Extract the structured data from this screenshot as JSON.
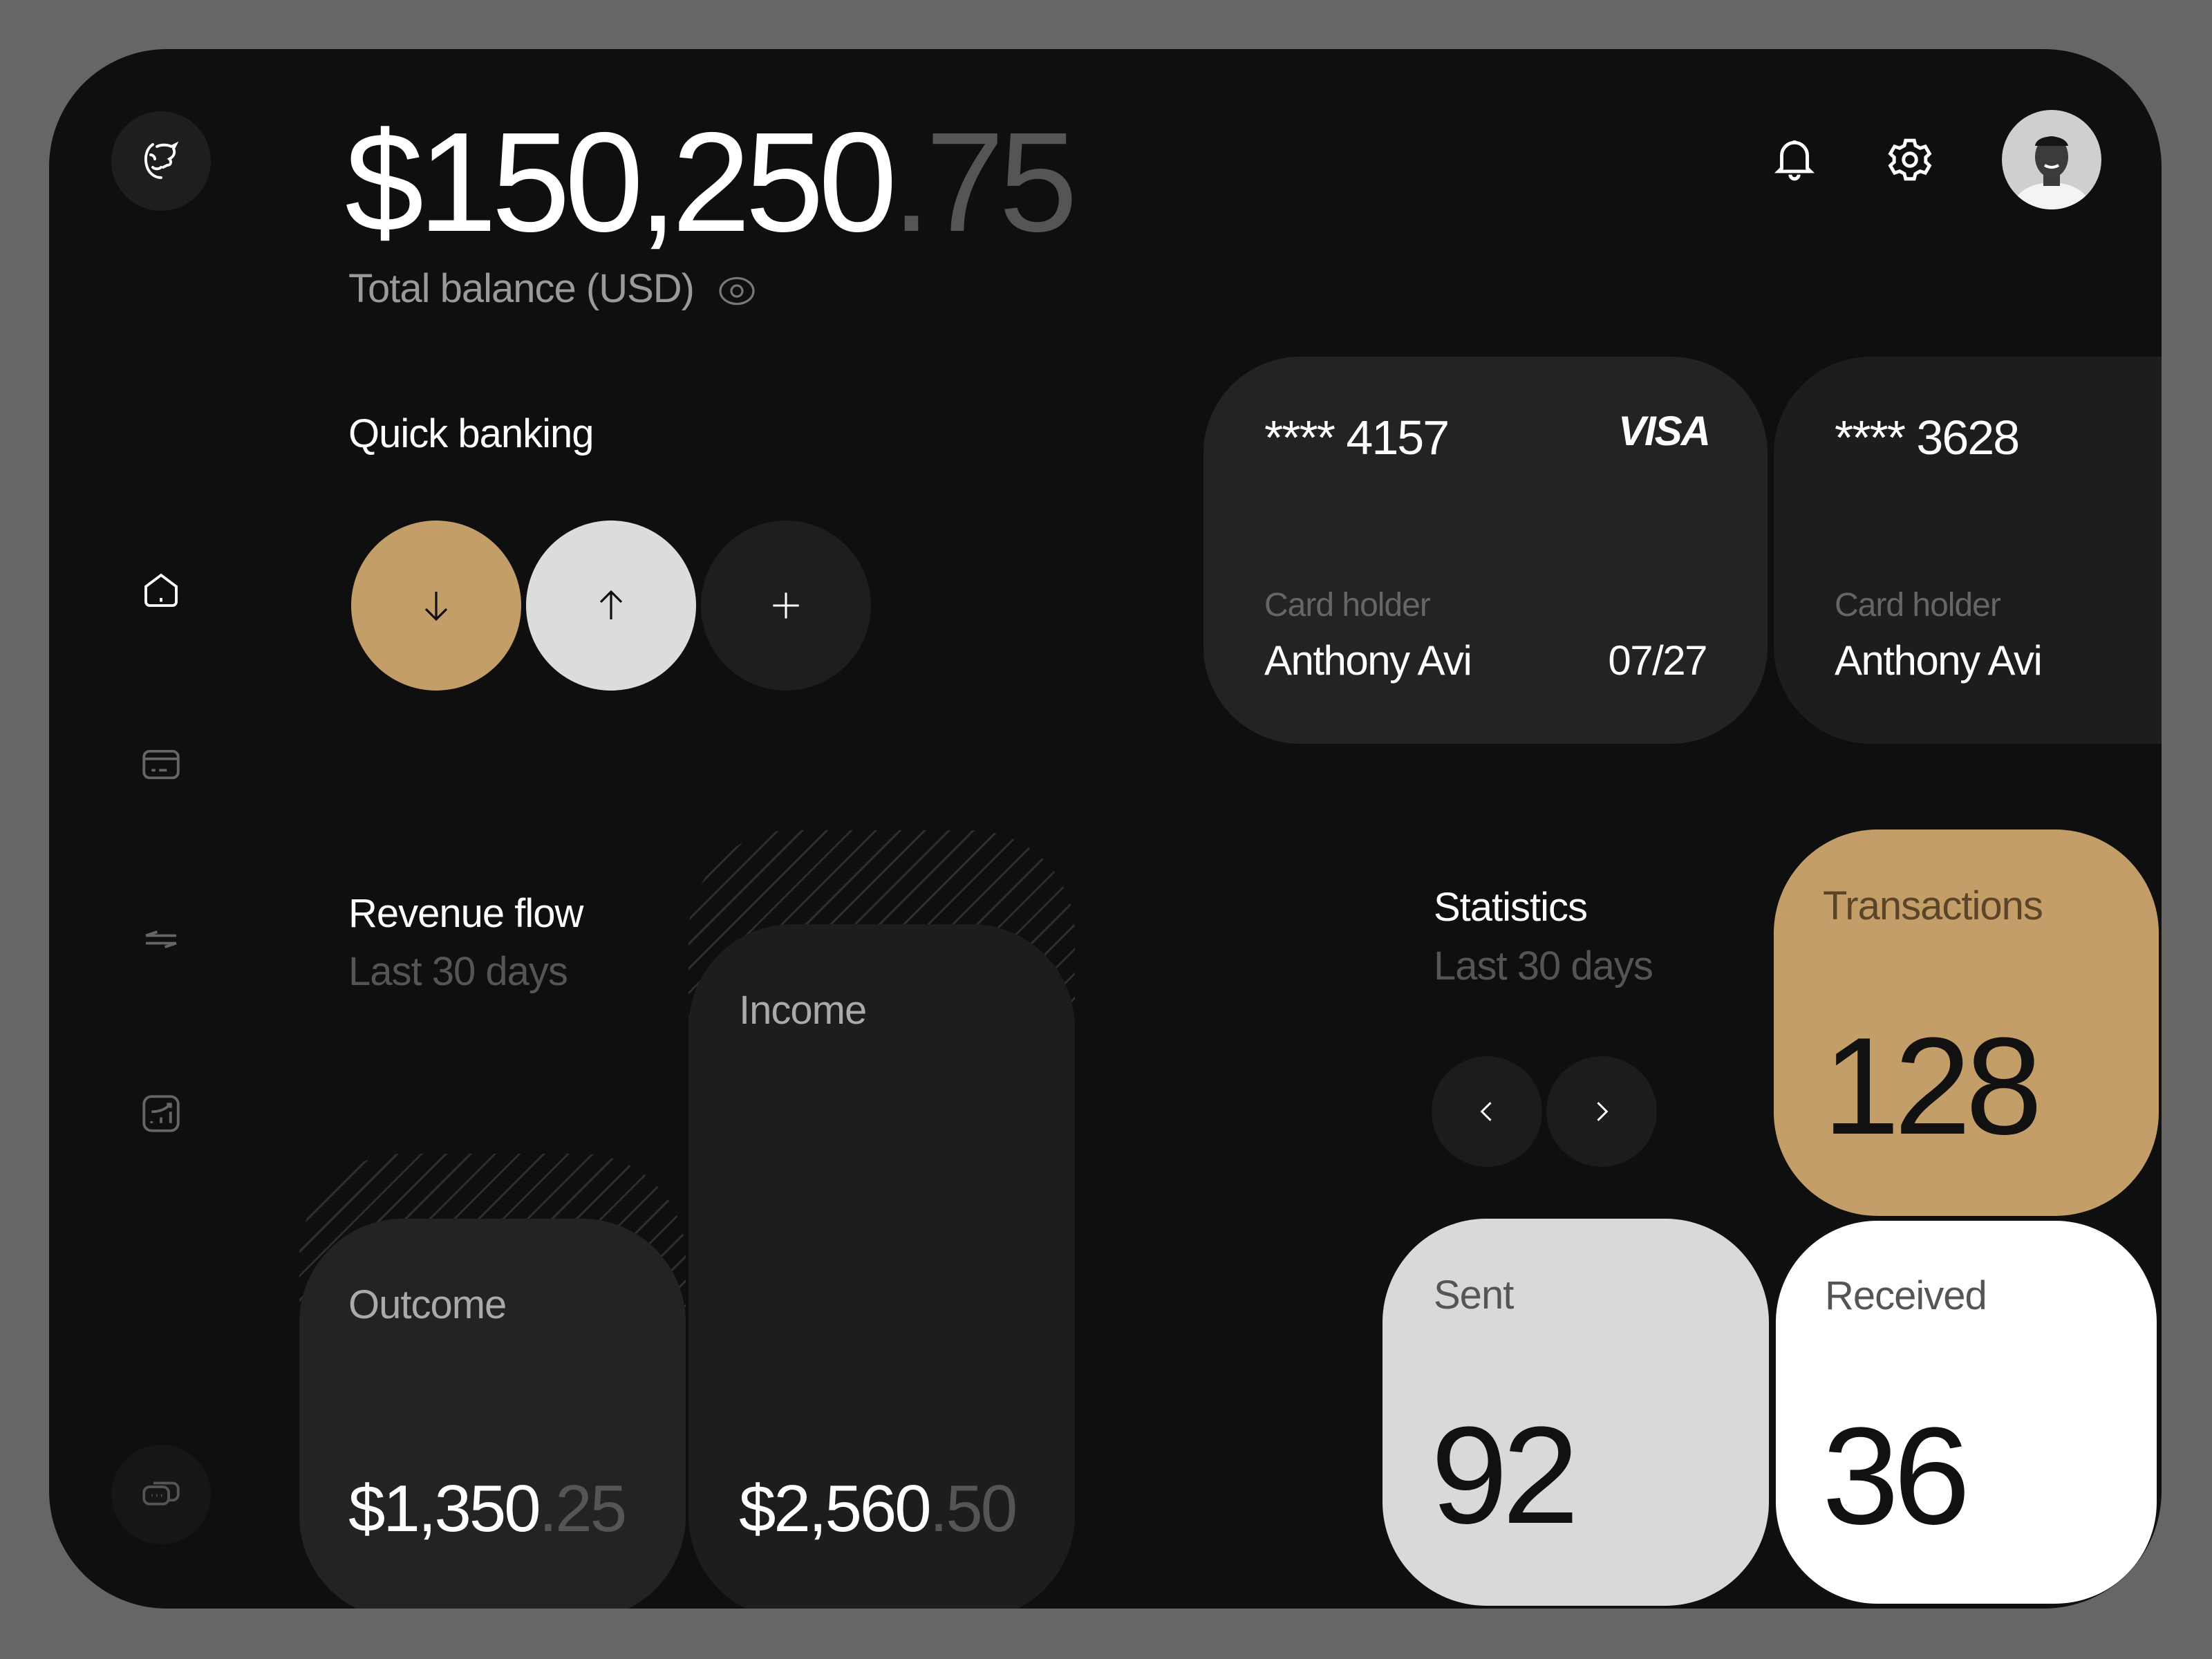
{
  "header": {
    "balance_main": "$150,250",
    "balance_cents": ".75",
    "balance_label": "Total balance (USD)"
  },
  "icons": {
    "logo": "bull-logo-icon",
    "notifications": "bell-icon",
    "settings": "gear-icon",
    "visibility": "eye-icon"
  },
  "sidebar": {
    "items": [
      {
        "icon": "home-icon",
        "active": true
      },
      {
        "icon": "card-icon",
        "active": false
      },
      {
        "icon": "transfer-icon",
        "active": false
      },
      {
        "icon": "chart-icon",
        "active": false
      }
    ],
    "chat_icon": "chat-icon"
  },
  "quick_banking": {
    "title": "Quick banking",
    "actions": [
      {
        "icon": "arrow-down-icon",
        "color": "#c49e68"
      },
      {
        "icon": "arrow-up-icon",
        "color": "#dcdcdc"
      },
      {
        "icon": "plus-icon",
        "color": "#1e1e1e"
      }
    ]
  },
  "cards": [
    {
      "number": "**** 4157",
      "brand": "VISA",
      "holder_label": "Card holder",
      "holder": "Anthony Avi",
      "expiry": "07/27"
    },
    {
      "number": "**** 3628",
      "holder_label": "Card holder",
      "holder": "Anthony Avi"
    }
  ],
  "revenue": {
    "title": "Revenue flow",
    "subtitle": "Last 30 days",
    "outcome": {
      "label": "Outcome",
      "amount_main": "$1,350",
      "amount_cents": ".25"
    },
    "income": {
      "label": "Income",
      "amount_main": "$2,560",
      "amount_cents": ".50"
    }
  },
  "statistics": {
    "title": "Statistics",
    "subtitle": "Last 30 days",
    "transactions": {
      "label": "Transactions",
      "value": "128",
      "color": "#c49e68"
    },
    "sent": {
      "label": "Sent",
      "value": "92",
      "color": "#d9d9d9"
    },
    "received": {
      "label": "Received",
      "value": "36",
      "color": "#ffffff"
    }
  }
}
